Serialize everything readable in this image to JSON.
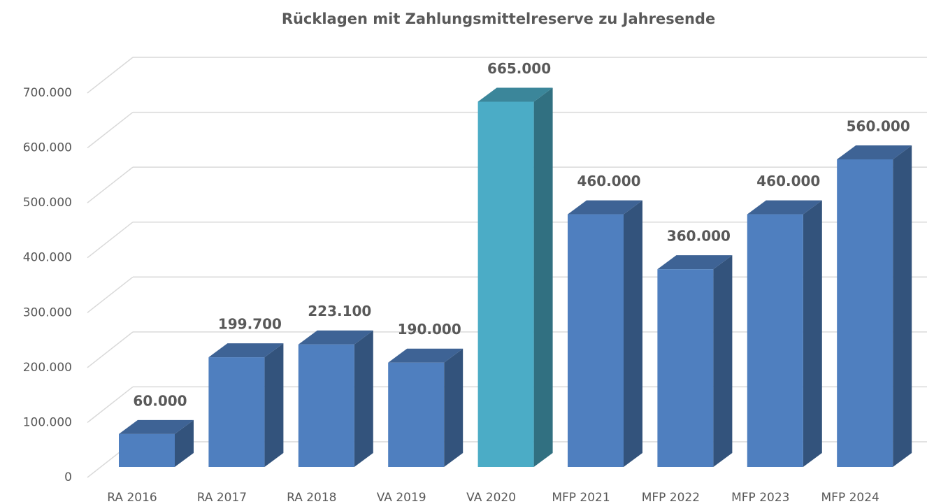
{
  "chart_data": {
    "type": "bar3d",
    "title": "Rücklagen mit Zahlungsmittelreserve zu Jahresende",
    "categories": [
      "RA 2016",
      "RA 2017",
      "RA 2018",
      "VA 2019",
      "VA 2020",
      "MFP 2021",
      "MFP 2022",
      "MFP 2023",
      "MFP 2024"
    ],
    "values": [
      60000,
      199700,
      223100,
      190000,
      665000,
      460000,
      360000,
      460000,
      560000
    ],
    "value_labels": [
      "60.000",
      "199.700",
      "223.100",
      "190.000",
      "665.000",
      "460.000",
      "360.000",
      "460.000",
      "560.000"
    ],
    "colors": [
      "#4f7fbf",
      "#4f7fbf",
      "#4f7fbf",
      "#4f7fbf",
      "#4bacc6",
      "#4f7fbf",
      "#4f7fbf",
      "#4f7fbf",
      "#4f7fbf"
    ],
    "ylim": [
      0,
      700000
    ],
    "yticks": [
      0,
      {
        "value": 100000,
        "label": "100.000"
      },
      {
        "value": 200000,
        "label": "200.000"
      },
      {
        "value": 300000,
        "label": "300.000"
      },
      {
        "value": 400000,
        "label": "400.000"
      },
      {
        "value": 500000,
        "label": "500.000"
      },
      {
        "value": 600000,
        "label": "600.000"
      },
      {
        "value": 700000,
        "label": "700.000"
      }
    ],
    "grid": true
  }
}
